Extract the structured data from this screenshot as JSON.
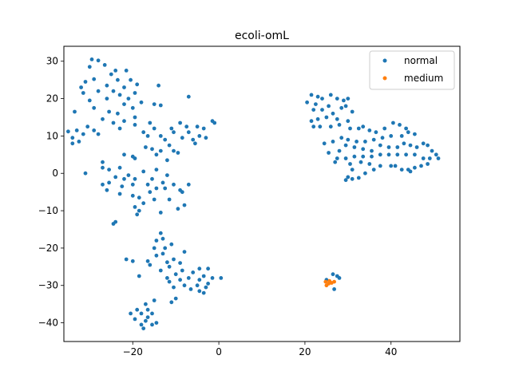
{
  "chart_data": {
    "type": "scatter",
    "title": "ecoli-omL",
    "xlabel": "",
    "ylabel": "",
    "xlim": [
      -36,
      56
    ],
    "ylim": [
      -45,
      34
    ],
    "x_ticks": [
      -20,
      0,
      20,
      40
    ],
    "y_ticks": [
      -40,
      -30,
      -20,
      -10,
      0,
      10,
      20,
      30
    ],
    "grid": false,
    "legend_position": "top-right",
    "series": [
      {
        "name": "normal",
        "color": "#1f77b4",
        "points": [
          [
            -29.5,
            30.5
          ],
          [
            -28.0,
            30.2
          ],
          [
            -26.5,
            29.0
          ],
          [
            -30.0,
            28.5
          ],
          [
            -24.0,
            27.5
          ],
          [
            -21.5,
            27.5
          ],
          [
            -25.0,
            26.5
          ],
          [
            -23.5,
            25.0
          ],
          [
            -31.0,
            24.5
          ],
          [
            -29.0,
            25.2
          ],
          [
            -20.5,
            25.0
          ],
          [
            -19.0,
            23.8
          ],
          [
            -26.0,
            23.5
          ],
          [
            -22.0,
            23.0
          ],
          [
            -32.0,
            23.0
          ],
          [
            -28.0,
            22.0
          ],
          [
            -24.5,
            22.0
          ],
          [
            -19.5,
            21.5
          ],
          [
            -31.5,
            21.5
          ],
          [
            -23.0,
            21.0
          ],
          [
            -21.0,
            20.0
          ],
          [
            -26.0,
            20.0
          ],
          [
            -30.0,
            19.5
          ],
          [
            -18.0,
            19.0
          ],
          [
            -22.0,
            18.5
          ],
          [
            -29.0,
            17.5
          ],
          [
            -20.0,
            17.5
          ],
          [
            -25.5,
            16.5
          ],
          [
            -33.5,
            16.5
          ],
          [
            -23.5,
            16.0
          ],
          [
            -19.5,
            15.0
          ],
          [
            -27.0,
            14.5
          ],
          [
            -22.0,
            14.0
          ],
          [
            -24.5,
            13.5
          ],
          [
            -19.5,
            13.0
          ],
          [
            -30.5,
            12.5
          ],
          [
            -35.0,
            11.2
          ],
          [
            -33.0,
            11.5
          ],
          [
            -29.0,
            11.5
          ],
          [
            -23.0,
            12.0
          ],
          [
            -28.0,
            10.5
          ],
          [
            -31.5,
            10.5
          ],
          [
            -34.0,
            9.5
          ],
          [
            -32.5,
            8.5
          ],
          [
            -34.0,
            8.0
          ],
          [
            -14.0,
            23.5
          ],
          [
            -15.0,
            18.5
          ],
          [
            -13.5,
            18.2
          ],
          [
            -7.0,
            20.5
          ],
          [
            -16.0,
            13.5
          ],
          [
            -15.0,
            12.0
          ],
          [
            -17.5,
            11.0
          ],
          [
            -16.5,
            10.0
          ],
          [
            -13.5,
            10.0
          ],
          [
            -11.0,
            12.0
          ],
          [
            -9.0,
            13.5
          ],
          [
            -7.5,
            12.5
          ],
          [
            -10.5,
            11.0
          ],
          [
            -12.5,
            9.0
          ],
          [
            -7.0,
            11.0
          ],
          [
            -5.0,
            12.5
          ],
          [
            -3.5,
            12.0
          ],
          [
            -1.5,
            14.0
          ],
          [
            -1.0,
            13.5
          ],
          [
            -6.0,
            9.0
          ],
          [
            -4.5,
            10.0
          ],
          [
            -3.0,
            9.5
          ],
          [
            -5.5,
            8.0
          ],
          [
            -8.5,
            9.5
          ],
          [
            -11.5,
            7.5
          ],
          [
            -10.5,
            6.0
          ],
          [
            -13.5,
            6.0
          ],
          [
            -15.5,
            6.5
          ],
          [
            -17.0,
            7.0
          ],
          [
            -9.5,
            5.5
          ],
          [
            -14.5,
            5.0
          ],
          [
            -19.5,
            4.0
          ],
          [
            -20.0,
            4.5
          ],
          [
            -22.0,
            5.0
          ],
          [
            -12.0,
            3.5
          ],
          [
            -27.0,
            3.0
          ],
          [
            -27.0,
            1.5
          ],
          [
            -23.0,
            1.5
          ],
          [
            -25.5,
            1.0
          ],
          [
            -14.5,
            1.0
          ],
          [
            -17.5,
            0.5
          ],
          [
            -31.0,
            0.0
          ],
          [
            -21.0,
            -0.5
          ],
          [
            -12.0,
            -0.5
          ],
          [
            -24.0,
            -1.0
          ],
          [
            -22.0,
            -1.5
          ],
          [
            -19.5,
            -1.5
          ],
          [
            -15.5,
            -1.5
          ],
          [
            -25.5,
            -2.5
          ],
          [
            -13.0,
            -2.5
          ],
          [
            -27.0,
            -3.0
          ],
          [
            -20.0,
            -3.0
          ],
          [
            -16.5,
            -3.0
          ],
          [
            -10.5,
            -3.0
          ],
          [
            -7.0,
            -3.0
          ],
          [
            -22.5,
            -3.5
          ],
          [
            -14.5,
            -4.0
          ],
          [
            -12.5,
            -4.0
          ],
          [
            -9.0,
            -4.5
          ],
          [
            -26.0,
            -4.5
          ],
          [
            -8.5,
            -5.0
          ],
          [
            -23.0,
            -5.5
          ],
          [
            -16.0,
            -5.0
          ],
          [
            -20.0,
            -6.0
          ],
          [
            -18.5,
            -6.5
          ],
          [
            -11.5,
            -7.0
          ],
          [
            -15.0,
            -7.0
          ],
          [
            -17.5,
            -8.0
          ],
          [
            -8.0,
            -8.5
          ],
          [
            -19.5,
            -9.0
          ],
          [
            -9.5,
            -9.5
          ],
          [
            -18.5,
            -10.0
          ],
          [
            -13.5,
            -10.5
          ],
          [
            -19.0,
            -11.0
          ],
          [
            -24.0,
            -13.0
          ],
          [
            -24.5,
            -13.5
          ],
          [
            -13.5,
            -16.0
          ],
          [
            -13.0,
            -17.5
          ],
          [
            -14.5,
            -18.0
          ],
          [
            -11.0,
            -19.0
          ],
          [
            -12.5,
            -20.0
          ],
          [
            -15.0,
            -20.0
          ],
          [
            -13.0,
            -21.5
          ],
          [
            -8.0,
            -21.0
          ],
          [
            -14.5,
            -22.0
          ],
          [
            -10.5,
            -23.0
          ],
          [
            -21.5,
            -23.0
          ],
          [
            -20.0,
            -23.5
          ],
          [
            -16.5,
            -23.5
          ],
          [
            -12.0,
            -23.8
          ],
          [
            -9.0,
            -24.0
          ],
          [
            -16.0,
            -24.5
          ],
          [
            -11.5,
            -25.0
          ],
          [
            -4.5,
            -25.5
          ],
          [
            -2.5,
            -25.5
          ],
          [
            -8.5,
            -26.0
          ],
          [
            -13.5,
            -26.0
          ],
          [
            -6.0,
            -26.5
          ],
          [
            -3.5,
            -27.5
          ],
          [
            -10.0,
            -27.0
          ],
          [
            -18.5,
            -27.5
          ],
          [
            -12.0,
            -28.0
          ],
          [
            -4.5,
            -28.5
          ],
          [
            -7.0,
            -28.0
          ],
          [
            -1.5,
            -28.0
          ],
          [
            0.5,
            -28.0
          ],
          [
            -9.0,
            -28.5
          ],
          [
            -11.5,
            -29.0
          ],
          [
            -2.5,
            -29.5
          ],
          [
            -8.0,
            -30.0
          ],
          [
            -5.0,
            -30.0
          ],
          [
            -10.5,
            -30.5
          ],
          [
            -3.0,
            -30.5
          ],
          [
            -6.5,
            -31.0
          ],
          [
            -4.5,
            -31.5
          ],
          [
            -3.5,
            -32.0
          ],
          [
            -10.0,
            -33.5
          ],
          [
            -11.0,
            -34.5
          ],
          [
            -15.0,
            -34.0
          ],
          [
            -17.0,
            -35.0
          ],
          [
            -19.0,
            -36.5
          ],
          [
            -16.5,
            -36.5
          ],
          [
            -18.0,
            -37.5
          ],
          [
            -15.5,
            -37.5
          ],
          [
            -20.5,
            -37.5
          ],
          [
            -16.5,
            -38.5
          ],
          [
            -19.5,
            -39.0
          ],
          [
            -17.0,
            -39.5
          ],
          [
            -14.5,
            -40.0
          ],
          [
            -18.0,
            -40.5
          ],
          [
            -15.5,
            -40.5
          ],
          [
            -17.5,
            -41.5
          ],
          [
            20.5,
            19.0
          ],
          [
            21.5,
            21.0
          ],
          [
            23.0,
            20.5
          ],
          [
            24.0,
            20.0
          ],
          [
            26.0,
            21.0
          ],
          [
            22.5,
            18.5
          ],
          [
            25.5,
            18.0
          ],
          [
            27.5,
            20.0
          ],
          [
            29.0,
            19.5
          ],
          [
            30.0,
            20.0
          ],
          [
            28.5,
            17.5
          ],
          [
            24.0,
            17.0
          ],
          [
            22.0,
            17.0
          ],
          [
            26.5,
            16.0
          ],
          [
            29.5,
            18.0
          ],
          [
            31.0,
            16.5
          ],
          [
            27.5,
            14.5
          ],
          [
            25.0,
            15.0
          ],
          [
            23.0,
            14.5
          ],
          [
            21.5,
            14.0
          ],
          [
            30.0,
            14.0
          ],
          [
            28.0,
            13.0
          ],
          [
            26.0,
            12.5
          ],
          [
            23.5,
            12.5
          ],
          [
            22.0,
            12.5
          ],
          [
            30.5,
            12.0
          ],
          [
            32.5,
            12.0
          ],
          [
            33.5,
            12.5
          ],
          [
            35.0,
            11.5
          ],
          [
            36.5,
            11.0
          ],
          [
            38.5,
            12.0
          ],
          [
            40.5,
            13.5
          ],
          [
            42.0,
            13.0
          ],
          [
            43.5,
            12.0
          ],
          [
            42.5,
            10.0
          ],
          [
            44.0,
            11.0
          ],
          [
            45.5,
            10.5
          ],
          [
            40.0,
            10.0
          ],
          [
            38.0,
            9.5
          ],
          [
            36.0,
            9.0
          ],
          [
            34.0,
            8.5
          ],
          [
            32.0,
            8.5
          ],
          [
            30.0,
            9.0
          ],
          [
            28.5,
            9.5
          ],
          [
            26.5,
            8.5
          ],
          [
            24.5,
            8.0
          ],
          [
            29.5,
            7.5
          ],
          [
            31.5,
            7.0
          ],
          [
            33.5,
            6.5
          ],
          [
            35.5,
            6.0
          ],
          [
            37.5,
            7.5
          ],
          [
            39.5,
            7.0
          ],
          [
            41.5,
            7.0
          ],
          [
            43.0,
            8.0
          ],
          [
            44.5,
            7.5
          ],
          [
            46.0,
            7.0
          ],
          [
            47.5,
            8.0
          ],
          [
            48.5,
            7.5
          ],
          [
            49.5,
            6.0
          ],
          [
            50.5,
            5.0
          ],
          [
            51.0,
            4.0
          ],
          [
            49.0,
            4.0
          ],
          [
            47.5,
            4.0
          ],
          [
            45.5,
            5.0
          ],
          [
            43.5,
            5.0
          ],
          [
            41.5,
            5.0
          ],
          [
            39.5,
            5.0
          ],
          [
            37.5,
            5.0
          ],
          [
            35.5,
            4.5
          ],
          [
            33.5,
            4.5
          ],
          [
            31.5,
            4.5
          ],
          [
            29.5,
            4.0
          ],
          [
            27.5,
            4.0
          ],
          [
            25.5,
            5.5
          ],
          [
            28.0,
            6.0
          ],
          [
            27.0,
            3.0
          ],
          [
            30.5,
            2.5
          ],
          [
            33.0,
            3.0
          ],
          [
            35.0,
            2.5
          ],
          [
            37.5,
            2.0
          ],
          [
            40.0,
            2.0
          ],
          [
            41.0,
            2.0
          ],
          [
            42.5,
            1.0
          ],
          [
            44.0,
            1.0
          ],
          [
            45.5,
            1.5
          ],
          [
            47.0,
            2.0
          ],
          [
            48.5,
            2.5
          ],
          [
            44.5,
            0.5
          ],
          [
            36.0,
            1.0
          ],
          [
            31.0,
            1.0
          ],
          [
            34.0,
            0.0
          ],
          [
            30.0,
            -1.0
          ],
          [
            31.0,
            -1.5
          ],
          [
            32.5,
            -1.2
          ],
          [
            29.5,
            -1.8
          ],
          [
            26.5,
            -27.0
          ],
          [
            27.5,
            -27.5
          ],
          [
            28.0,
            -28.0
          ],
          [
            25.0,
            -28.5
          ],
          [
            26.8,
            -31.0
          ]
        ]
      },
      {
        "name": "medium",
        "color": "#ff7f0e",
        "points": [
          [
            24.8,
            -29.0
          ],
          [
            25.5,
            -29.5
          ],
          [
            26.2,
            -29.3
          ],
          [
            25.0,
            -30.0
          ],
          [
            26.8,
            -29.0
          ],
          [
            25.7,
            -28.8
          ]
        ]
      }
    ]
  }
}
